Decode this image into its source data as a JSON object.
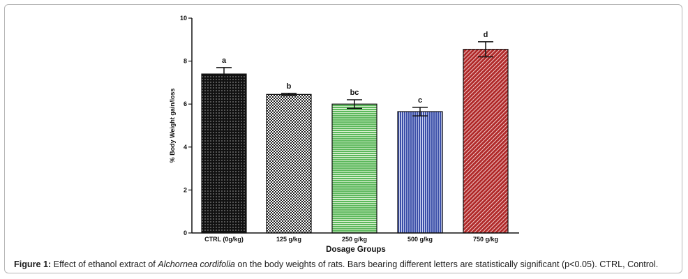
{
  "chart_data": {
    "type": "bar",
    "categories": [
      "CTRL (0g/kg)",
      "125 g/kg",
      "250 g/kg",
      "500 g/kg",
      "750 g/kg"
    ],
    "values": [
      7.4,
      6.45,
      6.0,
      5.65,
      8.55
    ],
    "errors": [
      0.3,
      0.05,
      0.2,
      0.2,
      0.35
    ],
    "significance_letters": [
      "a",
      "b",
      "bc",
      "c",
      "d"
    ],
    "colors": [
      "#111111",
      "#222222",
      "#5cb85c",
      "#3b4fa8",
      "#b02a2a"
    ],
    "xlabel": "Dosage Groups",
    "ylabel": "% Body Weight gain/loss",
    "ylim": [
      0,
      10
    ],
    "yticks": [
      0,
      2,
      4,
      6,
      8,
      10
    ],
    "grid": false
  },
  "caption": {
    "label": "Figure 1:",
    "text_before": " Effect of ethanol extract of ",
    "species": "Alchornea cordifolia",
    "text_after": " on the body weights of rats. Bars bearing different letters are statistically significant (p<0.05). CTRL, Control."
  }
}
